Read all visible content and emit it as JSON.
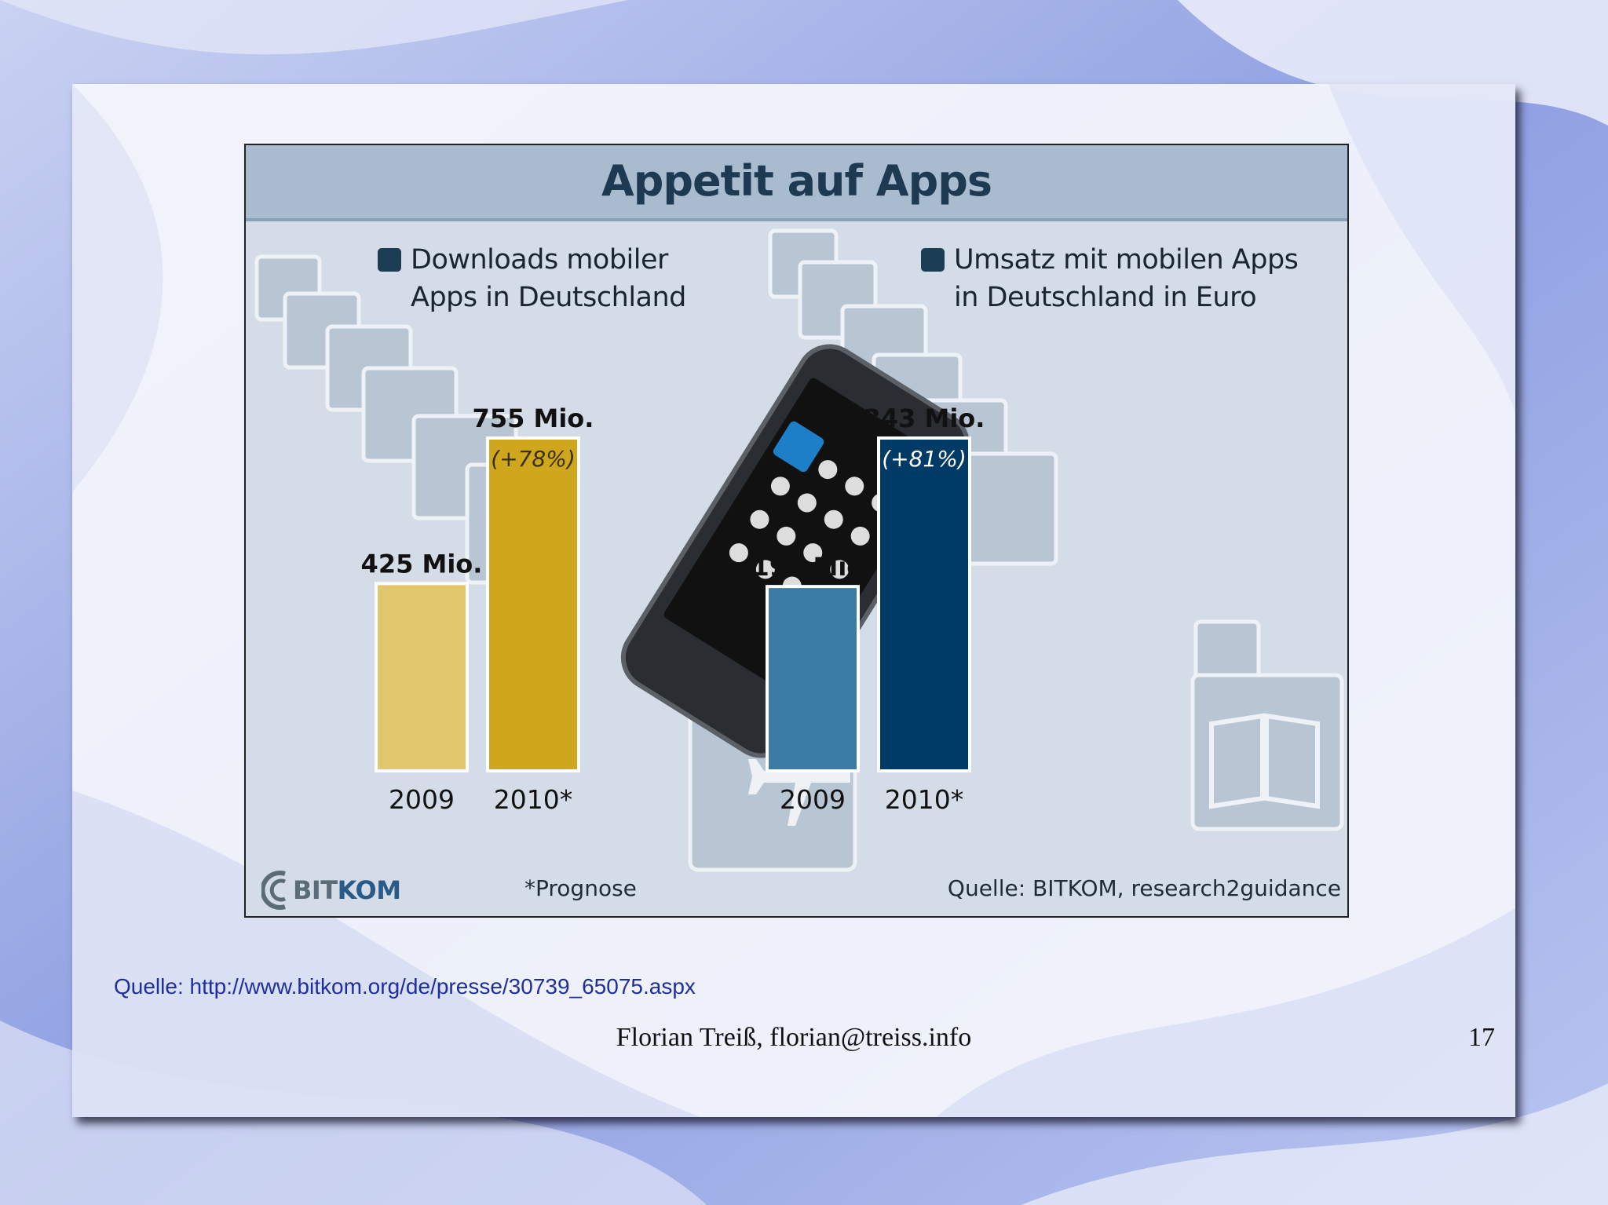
{
  "chart_data": [
    {
      "type": "bar",
      "title": "Appetit auf Apps",
      "legend": "Downloads mobiler Apps in Deutschland",
      "categories": [
        "2009",
        "2010*"
      ],
      "values": [
        425,
        755
      ],
      "value_labels": [
        "425 Mio.",
        "755 Mio."
      ],
      "change_labels": [
        "",
        "(+78%)"
      ],
      "colors": [
        "#e3c76d",
        "#cfa71c"
      ]
    },
    {
      "type": "bar",
      "title": "Appetit auf Apps",
      "legend": "Umsatz mit mobilen Apps in Deutschland in Euro",
      "categories": [
        "2009",
        "2010*"
      ],
      "values": [
        190,
        343
      ],
      "value_labels": [
        "190 Mio.",
        "343 Mio."
      ],
      "change_labels": [
        "",
        "(+81%)"
      ],
      "colors": [
        "#3a7ca5",
        "#003a66"
      ]
    }
  ],
  "infographic": {
    "title": "Appetit auf Apps",
    "legend_left_line1": "Downloads mobiler",
    "legend_left_line2": "Apps in Deutschland",
    "legend_right_line1": "Umsatz mit mobilen Apps",
    "legend_right_line2": "in Deutschland in Euro",
    "footnote": "*Prognose",
    "source": "Quelle: BITKOM, research2guidance",
    "logo_bit": "BIT",
    "logo_kom": "KOM"
  },
  "slide": {
    "source_link": "Quelle: http://www.bitkom.org/de/presse/30739_65075.aspx",
    "author": "Florian Treiß, florian@treiss.info",
    "page_number": "17"
  }
}
